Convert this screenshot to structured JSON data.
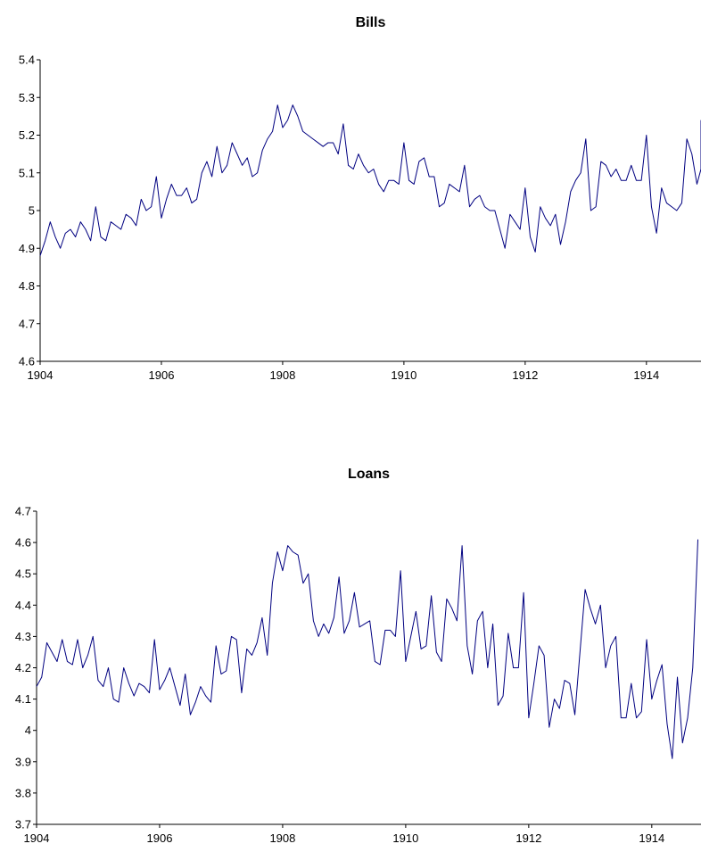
{
  "chart_data": [
    {
      "type": "line",
      "title": "Bills",
      "xlabel": "",
      "ylabel": "",
      "xlim": [
        1904,
        1914.9
      ],
      "ylim": [
        4.6,
        5.4
      ],
      "y_ticks": [
        4.6,
        4.7,
        4.8,
        4.9,
        5.0,
        5.1,
        5.2,
        5.3,
        5.4
      ],
      "y_tick_labels": [
        "4.6",
        "4.7",
        "4.8",
        "4.9",
        "5",
        "5.1",
        "5.2",
        "5.3",
        "5.4"
      ],
      "x_ticks": [
        1904,
        1906,
        1908,
        1910,
        1912,
        1914
      ],
      "x_tick_labels": [
        "1904",
        "1906",
        "1908",
        "1910",
        "1912",
        "1914"
      ],
      "grid": false,
      "line_color": "#000080",
      "series": [
        {
          "x_start": 1904,
          "x_step": 0.08333,
          "values": [
            4.88,
            4.92,
            4.97,
            4.93,
            4.9,
            4.94,
            4.95,
            4.93,
            4.97,
            4.95,
            4.92,
            5.01,
            4.93,
            4.92,
            4.97,
            4.96,
            4.95,
            4.99,
            4.98,
            4.96,
            5.03,
            5.0,
            5.01,
            5.09,
            4.98,
            5.03,
            5.07,
            5.04,
            5.04,
            5.06,
            5.02,
            5.03,
            5.1,
            5.13,
            5.09,
            5.17,
            5.1,
            5.12,
            5.18,
            5.15,
            5.12,
            5.14,
            5.09,
            5.1,
            5.16,
            5.19,
            5.21,
            5.28,
            5.22,
            5.24,
            5.28,
            5.25,
            5.21,
            5.2,
            5.19,
            5.18,
            5.17,
            5.18,
            5.18,
            5.15,
            5.23,
            5.12,
            5.11,
            5.15,
            5.12,
            5.1,
            5.11,
            5.07,
            5.05,
            5.08,
            5.08,
            5.07,
            5.18,
            5.08,
            5.07,
            5.13,
            5.14,
            5.09,
            5.09,
            5.01,
            5.02,
            5.07,
            5.06,
            5.05,
            5.12,
            5.01,
            5.03,
            5.04,
            5.01,
            5.0,
            5.0,
            4.95,
            4.9,
            4.99,
            4.97,
            4.95,
            5.06,
            4.93,
            4.89,
            5.01,
            4.98,
            4.96,
            4.99,
            4.91,
            4.97,
            5.05,
            5.08,
            5.1,
            5.19,
            5.0,
            5.01,
            5.13,
            5.12,
            5.09,
            5.11,
            5.08,
            5.08,
            5.12,
            5.08,
            5.08,
            5.2,
            5.01,
            4.94,
            5.06,
            5.02,
            5.01,
            5.0,
            5.02,
            5.19,
            5.15,
            5.07,
            5.11,
            5.24
          ]
        }
      ]
    },
    {
      "type": "line",
      "title": "Loans",
      "xlabel": "",
      "ylabel": "",
      "xlim": [
        1904,
        1914.8
      ],
      "ylim": [
        3.7,
        4.7
      ],
      "y_ticks": [
        3.7,
        3.8,
        3.9,
        4.0,
        4.1,
        4.2,
        4.3,
        4.4,
        4.5,
        4.6,
        4.7
      ],
      "y_tick_labels": [
        "3.7",
        "3.8",
        "3.9",
        "4",
        "4.1",
        "4.2",
        "4.3",
        "4.4",
        "4.5",
        "4.6",
        "4.7"
      ],
      "x_ticks": [
        1904,
        1906,
        1908,
        1910,
        1912,
        1914
      ],
      "x_tick_labels": [
        "1904",
        "1906",
        "1908",
        "1910",
        "1912",
        "1914"
      ],
      "grid": false,
      "line_color": "#000080",
      "series": [
        {
          "x_start": 1904,
          "x_step": 0.08333,
          "values": [
            4.14,
            4.17,
            4.28,
            4.25,
            4.22,
            4.29,
            4.22,
            4.21,
            4.29,
            4.2,
            4.24,
            4.3,
            4.16,
            4.14,
            4.2,
            4.1,
            4.09,
            4.2,
            4.15,
            4.11,
            4.15,
            4.14,
            4.12,
            4.29,
            4.13,
            4.16,
            4.2,
            4.14,
            4.08,
            4.18,
            4.05,
            4.09,
            4.14,
            4.11,
            4.09,
            4.27,
            4.18,
            4.19,
            4.3,
            4.29,
            4.12,
            4.26,
            4.24,
            4.28,
            4.36,
            4.24,
            4.47,
            4.57,
            4.51,
            4.59,
            4.57,
            4.56,
            4.47,
            4.5,
            4.35,
            4.3,
            4.34,
            4.31,
            4.36,
            4.49,
            4.31,
            4.35,
            4.44,
            4.33,
            4.34,
            4.35,
            4.22,
            4.21,
            4.32,
            4.32,
            4.3,
            4.51,
            4.22,
            4.3,
            4.38,
            4.26,
            4.27,
            4.43,
            4.25,
            4.22,
            4.42,
            4.39,
            4.35,
            4.59,
            4.27,
            4.18,
            4.35,
            4.38,
            4.2,
            4.34,
            4.08,
            4.11,
            4.31,
            4.2,
            4.2,
            4.44,
            4.04,
            4.15,
            4.27,
            4.24,
            4.01,
            4.1,
            4.07,
            4.16,
            4.15,
            4.05,
            4.25,
            4.45,
            4.39,
            4.34,
            4.4,
            4.2,
            4.27,
            4.3,
            4.04,
            4.04,
            4.15,
            4.04,
            4.06,
            4.29,
            4.1,
            4.16,
            4.21,
            4.02,
            3.91,
            4.17,
            3.96,
            4.04,
            4.2,
            4.61
          ]
        }
      ]
    }
  ]
}
